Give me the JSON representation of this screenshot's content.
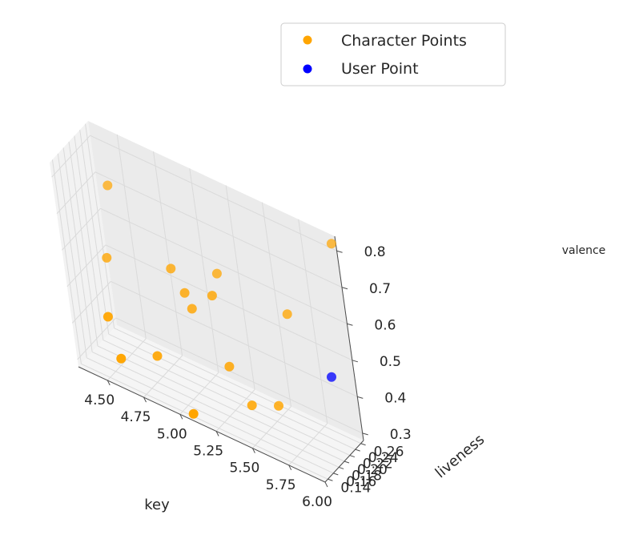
{
  "chart_data": {
    "type": "scatter",
    "projection": "3d",
    "title": "",
    "xlabel": "key",
    "ylabel": "liveness",
    "zlabel": "valence",
    "xlim": [
      4.3,
      6.0
    ],
    "ylim": [
      0.13,
      0.27
    ],
    "zlim": [
      0.28,
      0.84
    ],
    "x_ticks": [
      "4.50",
      "4.75",
      "5.00",
      "5.25",
      "5.50",
      "5.75",
      "6.00"
    ],
    "y_ticks": [
      "0.14",
      "0.16",
      "0.18",
      "0.20",
      "0.22",
      "0.24",
      "0.26"
    ],
    "z_ticks": [
      "0.3",
      "0.4",
      "0.5",
      "0.6",
      "0.7",
      "0.8"
    ],
    "grid": true,
    "legend_position": "top-right",
    "series": [
      {
        "name": "Character Points",
        "color": "#ffa500",
        "points": [
          {
            "x": 5.98,
            "y": 0.265,
            "z": 0.82
          },
          {
            "x": 4.4,
            "y": 0.26,
            "z": 0.69
          },
          {
            "x": 5.15,
            "y": 0.245,
            "z": 0.6
          },
          {
            "x": 5.65,
            "y": 0.235,
            "z": 0.59
          },
          {
            "x": 4.85,
            "y": 0.23,
            "z": 0.57
          },
          {
            "x": 5.15,
            "y": 0.22,
            "z": 0.56
          },
          {
            "x": 4.4,
            "y": 0.225,
            "z": 0.52
          },
          {
            "x": 4.95,
            "y": 0.22,
            "z": 0.53
          },
          {
            "x": 5.0,
            "y": 0.215,
            "z": 0.5
          },
          {
            "x": 4.5,
            "y": 0.16,
            "z": 0.43
          },
          {
            "x": 5.25,
            "y": 0.2,
            "z": 0.4
          },
          {
            "x": 4.8,
            "y": 0.17,
            "z": 0.37
          },
          {
            "x": 4.6,
            "y": 0.14,
            "z": 0.35
          },
          {
            "x": 5.55,
            "y": 0.21,
            "z": 0.34
          },
          {
            "x": 5.4,
            "y": 0.19,
            "z": 0.33
          },
          {
            "x": 5.1,
            "y": 0.13,
            "z": 0.3
          }
        ]
      },
      {
        "name": "User Point",
        "color": "#0000ff",
        "points": [
          {
            "x": 5.9,
            "y": 0.24,
            "z": 0.46
          }
        ]
      }
    ]
  }
}
